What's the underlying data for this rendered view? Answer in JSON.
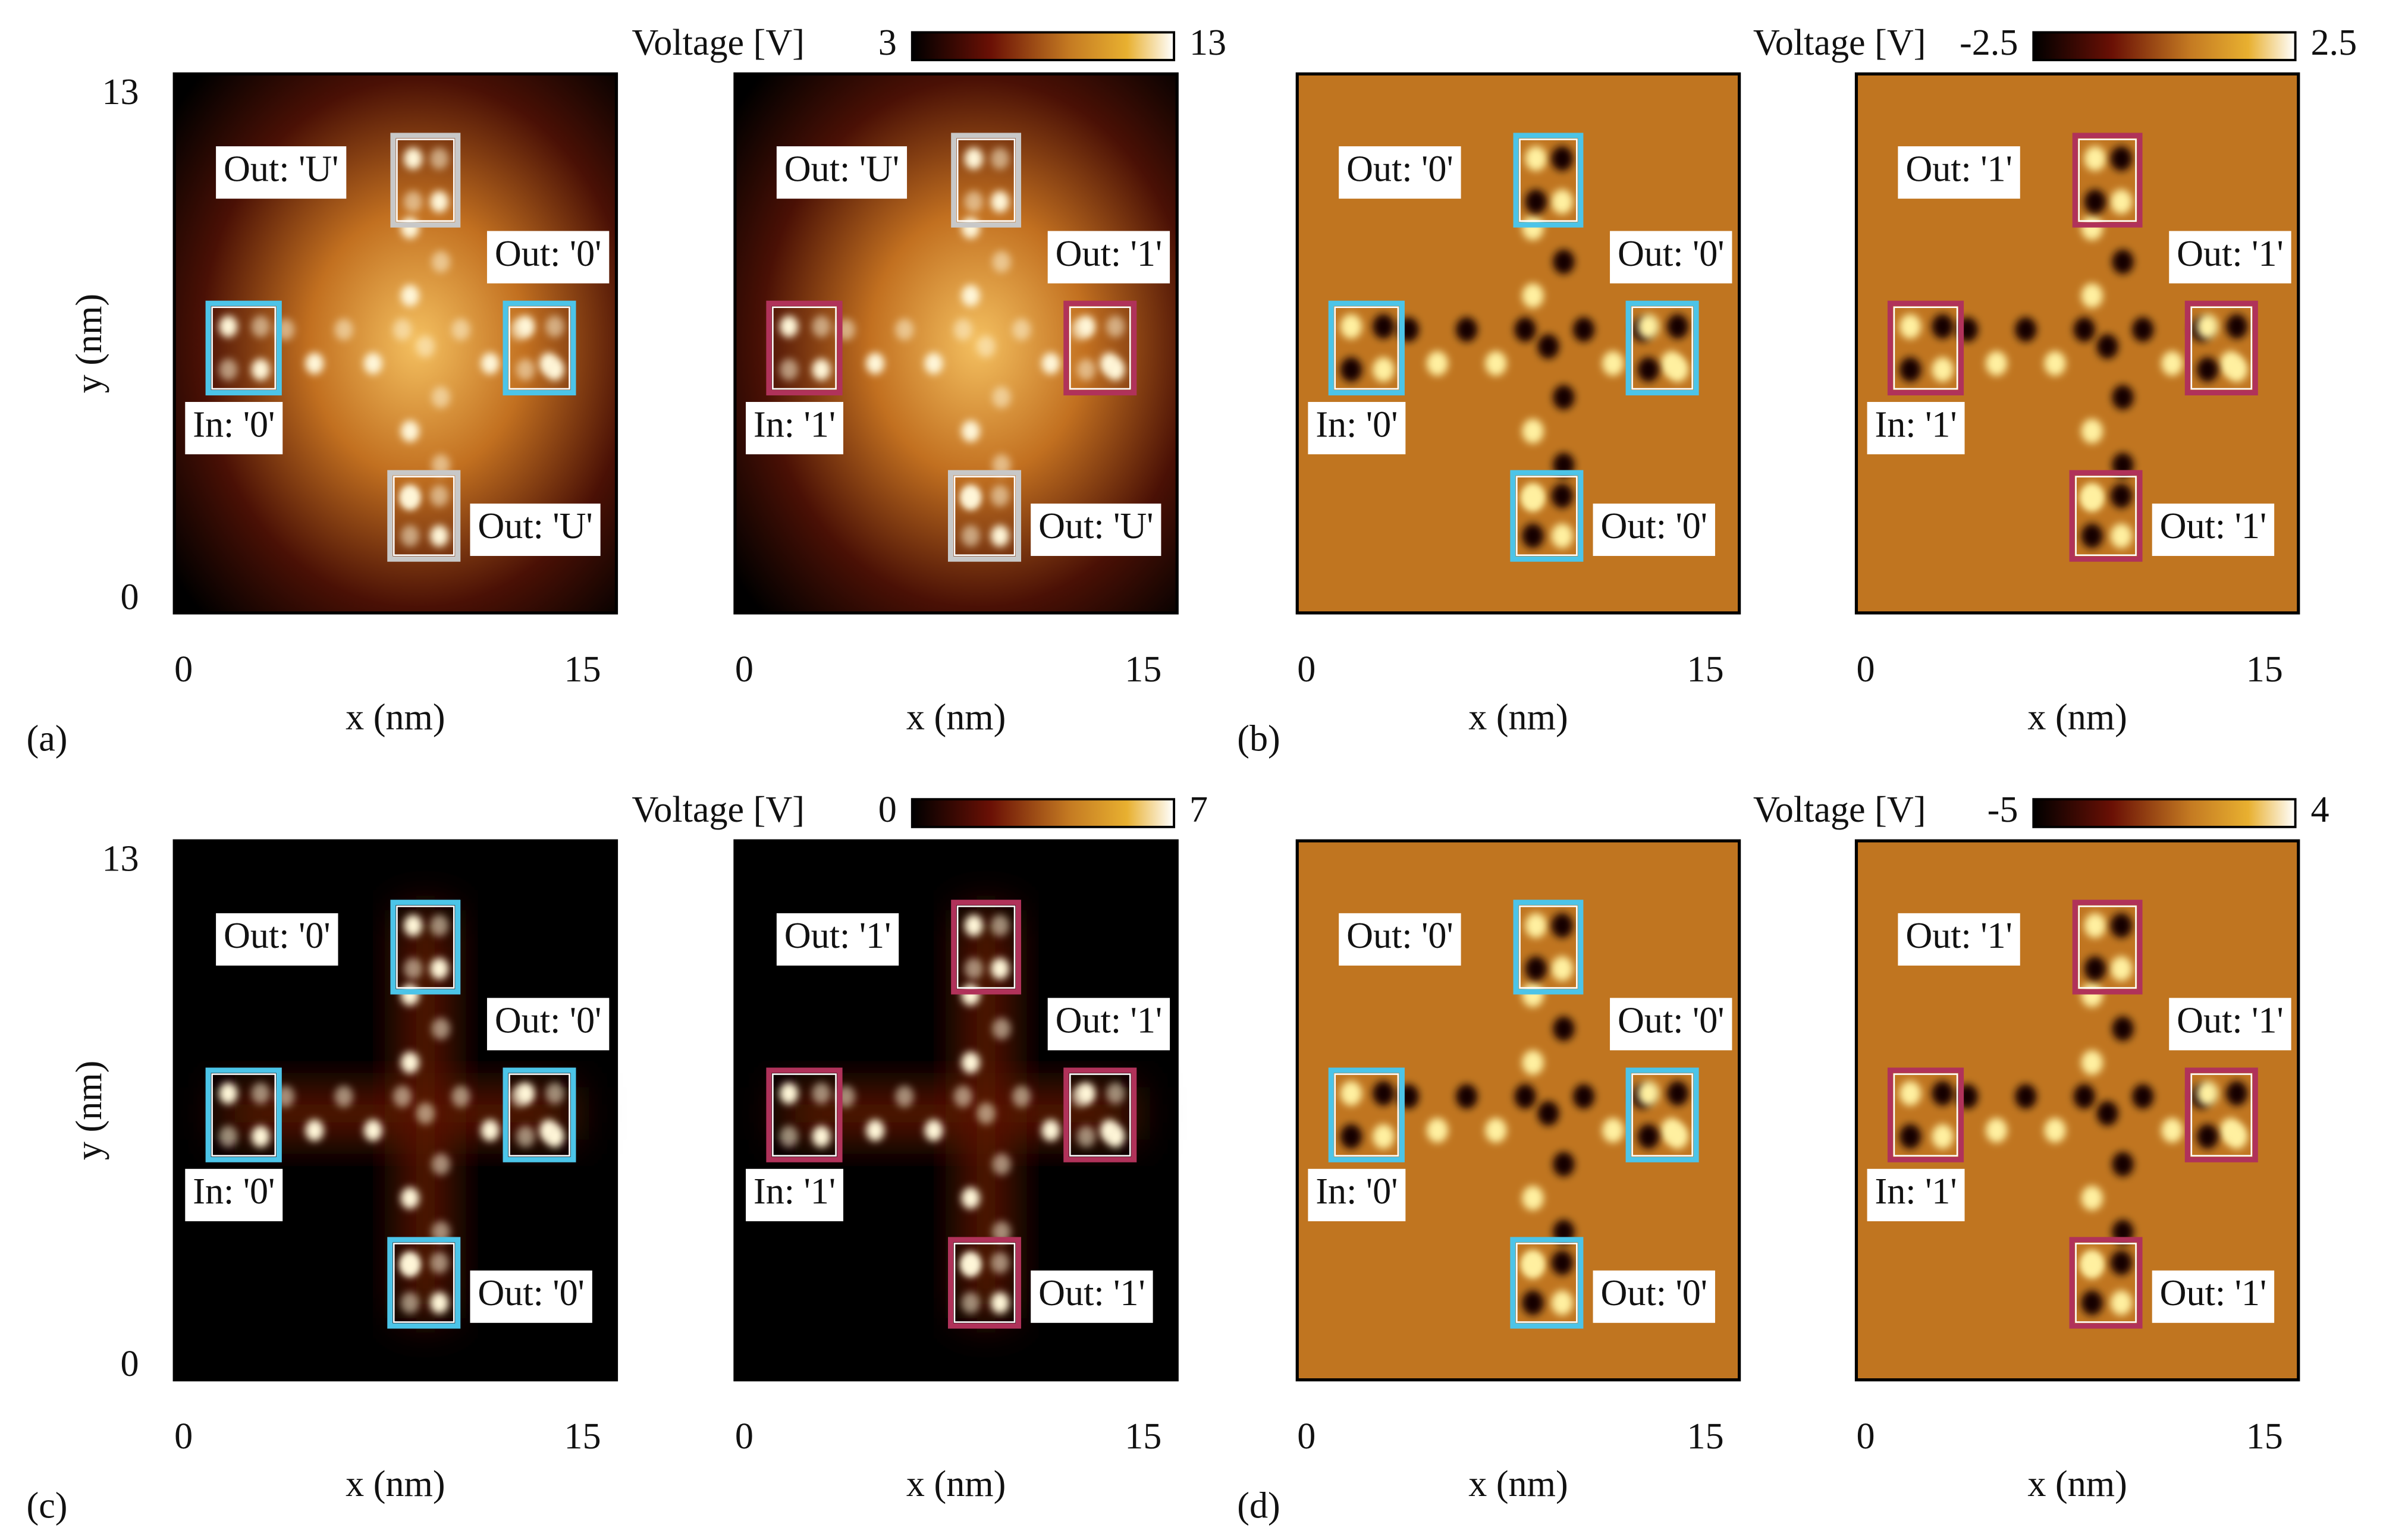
{
  "chart_data": [
    {
      "type": "heatmap",
      "panel_label": "(a)",
      "xlabel": "x (nm)",
      "ylabel": "y (nm)",
      "xlim": [
        0,
        15
      ],
      "xticks": [
        0,
        15
      ],
      "ylim": [
        0,
        13
      ],
      "yticks": [
        0,
        13
      ],
      "annotations": [
        {
          "text": "Out: 'U'",
          "position": "top",
          "color": "#c8c8c8"
        },
        {
          "text": "Out: '0'",
          "position": "right",
          "color": "#4cc4e8"
        },
        {
          "text": "In: '0'",
          "position": "left",
          "color": "#4cc4e8"
        },
        {
          "text": "Out: 'U'",
          "position": "bottom",
          "color": "#c8c8c8"
        }
      ]
    },
    {
      "type": "heatmap",
      "xlabel": "x (nm)",
      "xlim": [
        0,
        15
      ],
      "xticks": [
        0,
        15
      ],
      "colorbar": {
        "label": "Voltage [V]",
        "lim": [
          3,
          13
        ],
        "ticks": [
          3,
          13
        ]
      },
      "annotations": [
        {
          "text": "Out: 'U'",
          "position": "top",
          "color": "#c8c8c8"
        },
        {
          "text": "Out: '1'",
          "position": "right",
          "color": "#b0325a"
        },
        {
          "text": "In: '1'",
          "position": "left",
          "color": "#b0325a"
        },
        {
          "text": "Out: 'U'",
          "position": "bottom",
          "color": "#c8c8c8"
        }
      ]
    },
    {
      "type": "heatmap",
      "panel_label": "(b)",
      "xlabel": "x (nm)",
      "xlim": [
        0,
        15
      ],
      "xticks": [
        0,
        15
      ],
      "annotations": [
        {
          "text": "Out: '0'",
          "position": "top",
          "color": "#4cc4e8"
        },
        {
          "text": "Out: '0'",
          "position": "right",
          "color": "#4cc4e8"
        },
        {
          "text": "In: '0'",
          "position": "left",
          "color": "#4cc4e8"
        },
        {
          "text": "Out: '0'",
          "position": "bottom",
          "color": "#4cc4e8"
        }
      ]
    },
    {
      "type": "heatmap",
      "xlabel": "x (nm)",
      "xlim": [
        0,
        15
      ],
      "xticks": [
        0,
        15
      ],
      "colorbar": {
        "label": "Voltage [V]",
        "lim": [
          -2.5,
          2.5
        ],
        "ticks": [
          -2.5,
          2.5
        ]
      },
      "annotations": [
        {
          "text": "Out: '1'",
          "position": "top",
          "color": "#b0325a"
        },
        {
          "text": "Out: '1'",
          "position": "right",
          "color": "#b0325a"
        },
        {
          "text": "In: '1'",
          "position": "left",
          "color": "#b0325a"
        },
        {
          "text": "Out: '1'",
          "position": "bottom",
          "color": "#b0325a"
        }
      ]
    },
    {
      "type": "heatmap",
      "panel_label": "(c)",
      "xlabel": "x (nm)",
      "ylabel": "y (nm)",
      "xlim": [
        0,
        15
      ],
      "xticks": [
        0,
        15
      ],
      "ylim": [
        0,
        13
      ],
      "yticks": [
        0,
        13
      ],
      "annotations": [
        {
          "text": "Out: '0'",
          "position": "top",
          "color": "#4cc4e8"
        },
        {
          "text": "Out: '0'",
          "position": "right",
          "color": "#4cc4e8"
        },
        {
          "text": "In: '0'",
          "position": "left",
          "color": "#4cc4e8"
        },
        {
          "text": "Out: '0'",
          "position": "bottom",
          "color": "#4cc4e8"
        }
      ]
    },
    {
      "type": "heatmap",
      "xlabel": "x (nm)",
      "xlim": [
        0,
        15
      ],
      "xticks": [
        0,
        15
      ],
      "colorbar": {
        "label": "Voltage [V]",
        "lim": [
          0,
          7
        ],
        "ticks": [
          0,
          7
        ]
      },
      "annotations": [
        {
          "text": "Out: '1'",
          "position": "top",
          "color": "#b0325a"
        },
        {
          "text": "Out: '1'",
          "position": "right",
          "color": "#b0325a"
        },
        {
          "text": "In: '1'",
          "position": "left",
          "color": "#b0325a"
        },
        {
          "text": "Out: '1'",
          "position": "bottom",
          "color": "#b0325a"
        }
      ]
    },
    {
      "type": "heatmap",
      "panel_label": "(d)",
      "xlabel": "x (nm)",
      "xlim": [
        0,
        15
      ],
      "xticks": [
        0,
        15
      ],
      "annotations": [
        {
          "text": "Out: '0'",
          "position": "top",
          "color": "#4cc4e8"
        },
        {
          "text": "Out: '0'",
          "position": "right",
          "color": "#4cc4e8"
        },
        {
          "text": "In: '0'",
          "position": "left",
          "color": "#4cc4e8"
        },
        {
          "text": "Out: '0'",
          "position": "bottom",
          "color": "#4cc4e8"
        }
      ]
    },
    {
      "type": "heatmap",
      "xlabel": "x (nm)",
      "xlim": [
        0,
        15
      ],
      "xticks": [
        0,
        15
      ],
      "colorbar": {
        "label": "Voltage [V]",
        "lim": [
          -5,
          4
        ],
        "ticks": [
          -5,
          4
        ]
      },
      "annotations": [
        {
          "text": "Out: '1'",
          "position": "top",
          "color": "#b0325a"
        },
        {
          "text": "Out: '1'",
          "position": "right",
          "color": "#b0325a"
        },
        {
          "text": "In: '1'",
          "position": "left",
          "color": "#b0325a"
        },
        {
          "text": "Out: '1'",
          "position": "bottom",
          "color": "#b0325a"
        }
      ]
    }
  ]
}
